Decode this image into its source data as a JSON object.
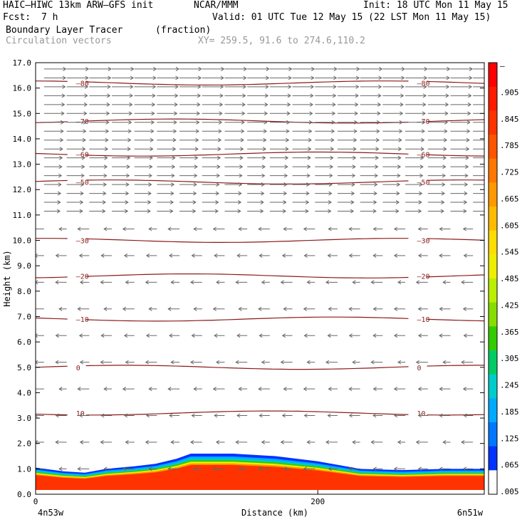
{
  "header": {
    "model": "HAIC–HIWC 13km ARW–GFS init",
    "org": "NCAR/MMM",
    "init": "Init: 18 UTC Mon 11 May 15",
    "fcst_label": "Fcst:",
    "fcst_value": "7 h",
    "valid": "Valid: 01 UTC Tue 12 May 15 (22 LST Mon 11 May 15)",
    "field": "Boundary Layer Tracer",
    "units": "(fraction)",
    "vectors": "Circulation vectors",
    "xy": "XY= 259.5, 91.6 to 274.6,110.2"
  },
  "chart_data": {
    "type": "heatmap",
    "xlabel": "Distance (km)",
    "ylabel": "Height (km)",
    "xlim": [
      0,
      318
    ],
    "ylim": [
      0,
      17
    ],
    "x_ticks": [
      0,
      200
    ],
    "x_tick_labels": [
      "0",
      "200"
    ],
    "x_endpoint_labels": [
      "4n53w",
      "6n51w"
    ],
    "y_ticks": [
      0,
      1,
      2,
      3,
      4,
      5,
      6,
      7,
      8,
      9,
      10,
      11,
      12,
      13,
      14,
      15,
      16,
      17
    ],
    "y_tick_labels": [
      "0.0",
      "1.0",
      "2.0",
      "3.0",
      "4.0",
      "5.0",
      "6.0",
      "7.0",
      "8.0",
      "9.0",
      "10.0",
      "11.0",
      "12.0",
      "13.0",
      "14.0",
      "15.0",
      "16.0",
      "17.0"
    ],
    "colorbar_labels": [
      "–",
      ".905",
      ".845",
      ".785",
      ".725",
      ".665",
      ".605",
      ".545",
      ".485",
      ".425",
      ".365",
      ".305",
      ".245",
      ".185",
      ".125",
      ".065",
      ".005"
    ],
    "colorbar_colors": [
      "#ff0000",
      "#ff1a00",
      "#ff3300",
      "#ff5500",
      "#ff7700",
      "#ff9900",
      "#ffbb00",
      "#ffdd00",
      "#eeee00",
      "#bbee00",
      "#88dd00",
      "#33cc00",
      "#00cc66",
      "#00cccc",
      "#00aaff",
      "#0077ff",
      "#0033ff",
      "#ffffff"
    ],
    "boundary_layer_top": [
      {
        "x": 0,
        "h": 1.05
      },
      {
        "x": 20,
        "h": 0.9
      },
      {
        "x": 35,
        "h": 0.85
      },
      {
        "x": 50,
        "h": 1.0
      },
      {
        "x": 70,
        "h": 1.1
      },
      {
        "x": 85,
        "h": 1.2
      },
      {
        "x": 100,
        "h": 1.4
      },
      {
        "x": 110,
        "h": 1.6
      },
      {
        "x": 140,
        "h": 1.6
      },
      {
        "x": 170,
        "h": 1.5
      },
      {
        "x": 200,
        "h": 1.3
      },
      {
        "x": 230,
        "h": 1.0
      },
      {
        "x": 260,
        "h": 0.95
      },
      {
        "x": 290,
        "h": 1.0
      },
      {
        "x": 318,
        "h": 1.0
      }
    ],
    "temperature_contours": [
      {
        "value": 10,
        "label": "10",
        "h": 3.2
      },
      {
        "value": 0,
        "label": "0",
        "h": 5.0
      },
      {
        "value": -10,
        "label": "–10",
        "h": 6.9
      },
      {
        "value": -20,
        "label": "–20",
        "h": 8.6
      },
      {
        "value": -30,
        "label": "–30",
        "h": 10.0
      },
      {
        "value": -50,
        "label": "–50",
        "h": 12.3
      },
      {
        "value": -60,
        "label": "–60",
        "h": 13.4
      },
      {
        "value": -70,
        "label": "–70",
        "h": 14.7
      },
      {
        "value": -80,
        "label": "–80",
        "h": 16.2
      }
    ],
    "vectors": {
      "upper_layer": {
        "h_min": 11.0,
        "h_max": 17.0,
        "direction": "east"
      },
      "lower_layer": {
        "h_min": 0,
        "h_max": 10.5,
        "direction": "west"
      }
    }
  }
}
